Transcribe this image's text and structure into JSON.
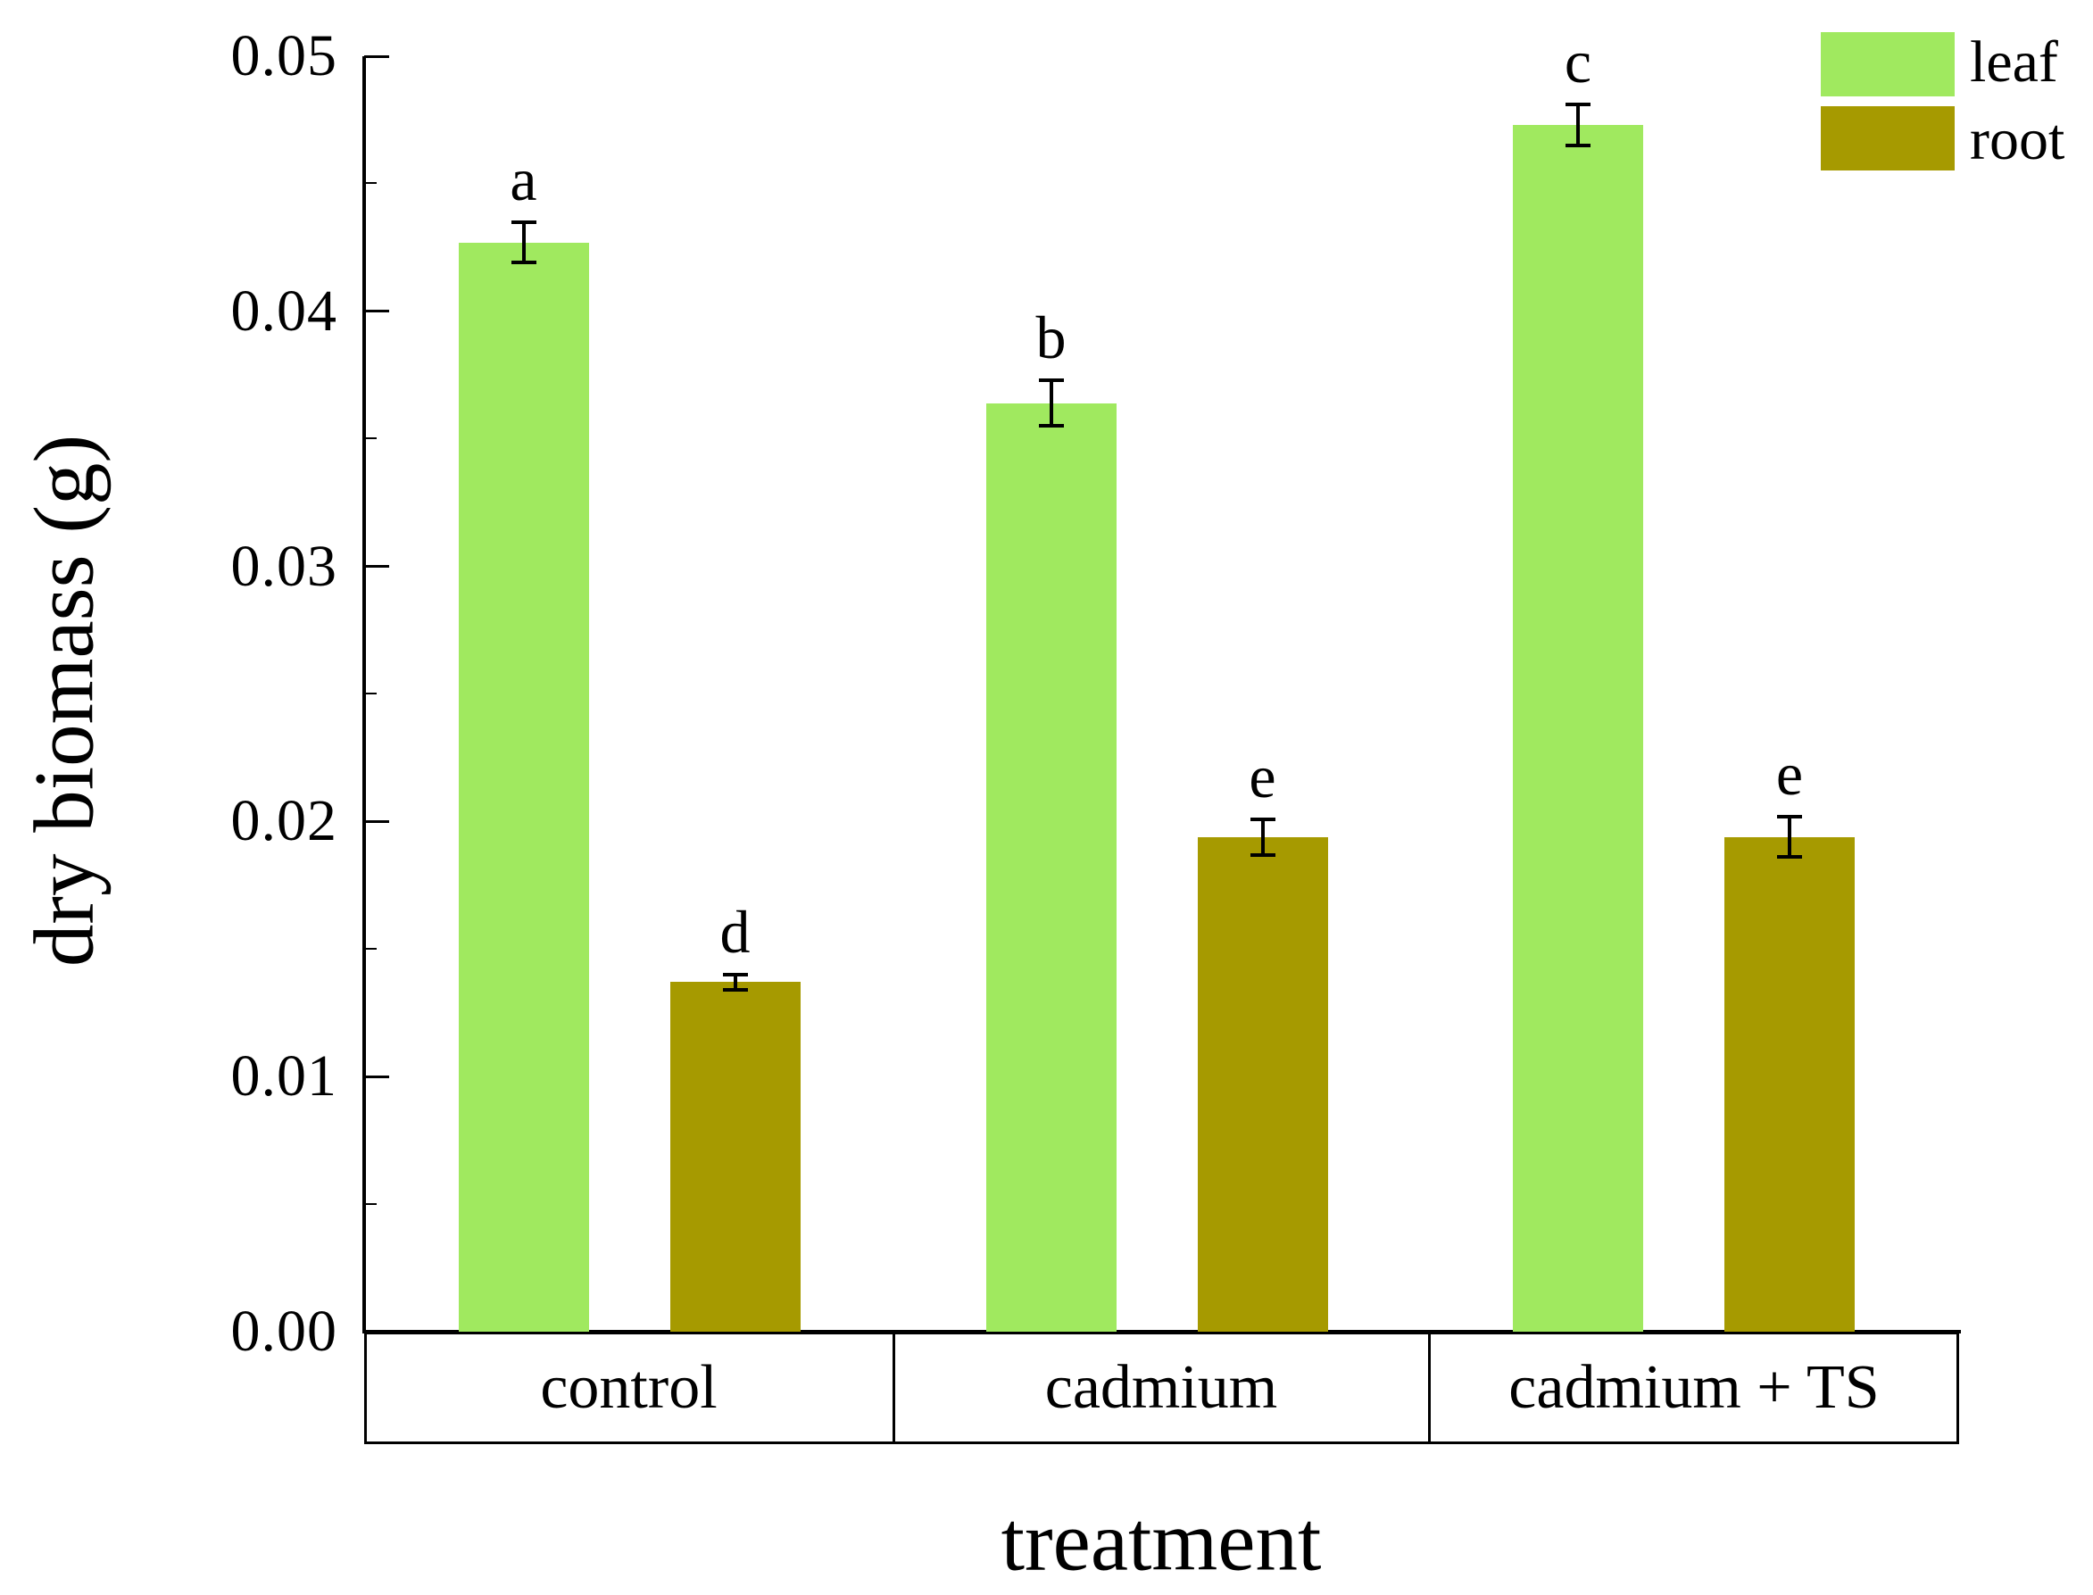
{
  "chart_data": {
    "type": "bar",
    "title": "",
    "xlabel": "treatment",
    "ylabel": "dry biomass (g)",
    "ylim": [
      0,
      0.05
    ],
    "ytick_values": [
      0,
      0.01,
      0.02,
      0.03,
      0.04,
      0.05
    ],
    "ytick_labels": [
      "0.00",
      "0.01",
      "0.02",
      "0.03",
      "0.04",
      "0.05"
    ],
    "minor_tick_values": [
      0.005,
      0.015,
      0.025,
      0.035,
      0.045
    ],
    "grid": false,
    "categories": [
      "control",
      "cadmium",
      "cadmium + TS"
    ],
    "series": [
      {
        "name": "leaf",
        "color": "#a0e95f",
        "values": [
          0.0427,
          0.0364,
          0.0473
        ],
        "errors": [
          0.0008,
          0.0009,
          0.0008
        ],
        "sig_letters": [
          "a",
          "b",
          "c"
        ]
      },
      {
        "name": "root",
        "color": "#a69a00",
        "values": [
          0.0137,
          0.0194,
          0.0194
        ],
        "errors": [
          0.0003,
          0.0007,
          0.0008
        ],
        "sig_letters": [
          "d",
          "e",
          "e"
        ]
      }
    ],
    "legend": {
      "position": "top-right",
      "entries": [
        {
          "label": "leaf",
          "color": "#a0e95f"
        },
        {
          "label": "root",
          "color": "#a69a00"
        }
      ]
    },
    "axis_color": "#000000",
    "error_bar_color": "#000000"
  }
}
